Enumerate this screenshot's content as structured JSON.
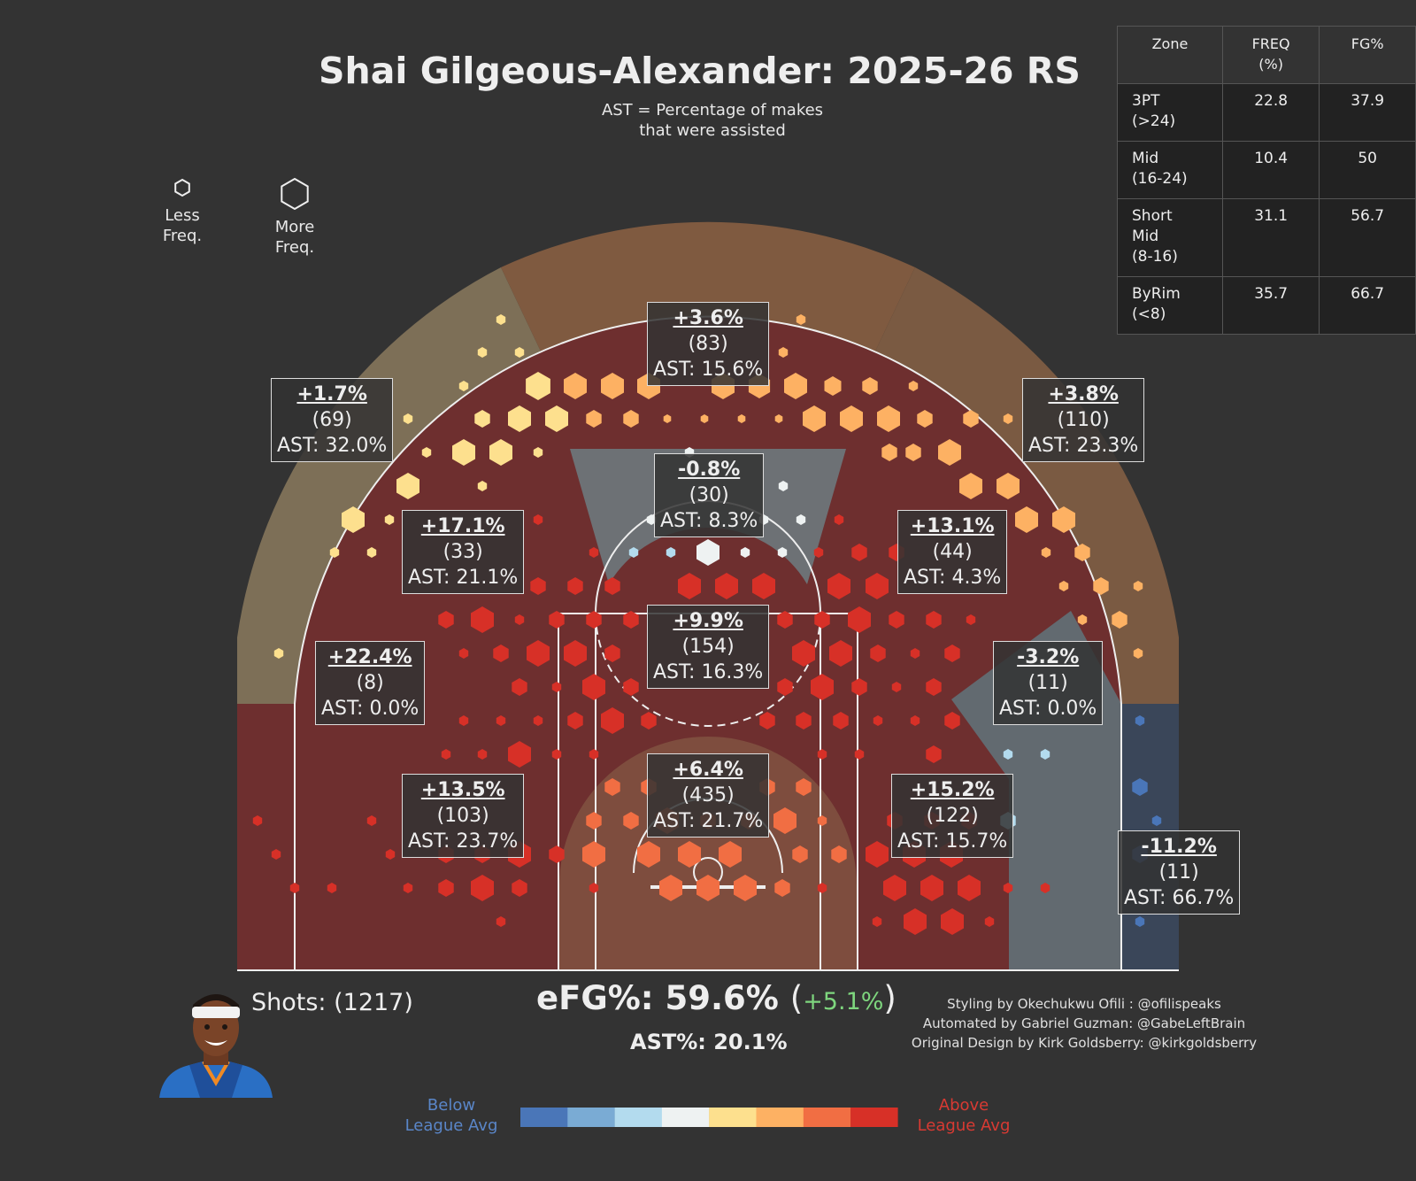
{
  "title": "Shai Gilgeous-Alexander: 2025-26 RS",
  "subtitle_line1": "AST = Percentage of makes",
  "subtitle_line2": "that were assisted",
  "legend": {
    "less_line1": "Less",
    "less_line2": "Freq.",
    "more_line1": "More",
    "more_line2": "Freq."
  },
  "zone_table": {
    "headers": [
      "Zone",
      "FREQ\n(%)",
      "FG%"
    ],
    "rows": [
      {
        "zone": "3PT\n(>24)",
        "freq": "22.8",
        "fg": "37.9"
      },
      {
        "zone": "Mid\n(16-24)",
        "freq": "10.4",
        "fg": "50"
      },
      {
        "zone": "Short\nMid\n(8-16)",
        "freq": "31.1",
        "fg": "56.7"
      },
      {
        "zone": "ByRim\n(<8)",
        "freq": "35.7",
        "fg": "66.7"
      }
    ]
  },
  "colors": {
    "background": "#333333",
    "court_line": "#eeeeee",
    "scale": [
      "#4a76b8",
      "#7aabd4",
      "#b3dbee",
      "#eef2f2",
      "#fde08e",
      "#fdb163",
      "#f16e43",
      "#d73027"
    ],
    "below_label": "#5a86c8",
    "above_label": "#d83a33",
    "efg_diff": "#7ed67e"
  },
  "chart_data": {
    "type": "heatmap",
    "title": "Shai Gilgeous-Alexander: 2025-26 RS",
    "zones": [
      {
        "zone": "above-break-3-center",
        "diff": "+3.6%",
        "count": "(83)",
        "ast": "AST: 15.6%"
      },
      {
        "zone": "above-break-3-left",
        "diff": "+1.7%",
        "count": "(69)",
        "ast": "AST: 32.0%"
      },
      {
        "zone": "above-break-3-right",
        "diff": "+3.8%",
        "count": "(110)",
        "ast": "AST: 23.3%"
      },
      {
        "zone": "mid-top",
        "diff": "-0.8%",
        "count": "(30)",
        "ast": "AST: 8.3%"
      },
      {
        "zone": "mid-left-wing",
        "diff": "+17.1%",
        "count": "(33)",
        "ast": "AST: 21.1%"
      },
      {
        "zone": "mid-right-wing",
        "diff": "+13.1%",
        "count": "(44)",
        "ast": "AST: 4.3%"
      },
      {
        "zone": "short-mid-paint",
        "diff": "+9.9%",
        "count": "(154)",
        "ast": "AST: 16.3%"
      },
      {
        "zone": "mid-left-baseline",
        "diff": "+22.4%",
        "count": "(8)",
        "ast": "AST: 0.0%"
      },
      {
        "zone": "mid-right-baseline",
        "diff": "-3.2%",
        "count": "(11)",
        "ast": "AST: 0.0%"
      },
      {
        "zone": "restricted-area",
        "diff": "+6.4%",
        "count": "(435)",
        "ast": "AST: 21.7%"
      },
      {
        "zone": "short-mid-left",
        "diff": "+13.5%",
        "count": "(103)",
        "ast": "AST: 23.7%"
      },
      {
        "zone": "short-mid-right",
        "diff": "+15.2%",
        "count": "(122)",
        "ast": "AST: 15.7%"
      },
      {
        "zone": "corner-3-right",
        "diff": "-11.2%",
        "count": "(11)",
        "ast": "AST: 66.7%"
      }
    ],
    "colorbar": {
      "min_label": "Below\nLeague Avg",
      "max_label": "Above\nLeague Avg",
      "bins": 8
    }
  },
  "footer": {
    "shots": "Shots: (1217)",
    "efg": "eFG%: 59.6%",
    "efg_open": "(",
    "efg_diff": "+5.1%",
    "efg_close": ")",
    "ast_pct": "AST%: 20.1%",
    "credit_1": "Styling by Okechukwu Ofili : @ofilispeaks",
    "credit_2": "Automated by Gabriel Guzman: @GabeLeftBrain",
    "credit_3": "Original Design by Kirk Goldsberry: @kirkgoldsberry",
    "below_line1": "Below",
    "below_line2": "League Avg",
    "above_line1": "Above",
    "above_line2": "League Avg"
  }
}
